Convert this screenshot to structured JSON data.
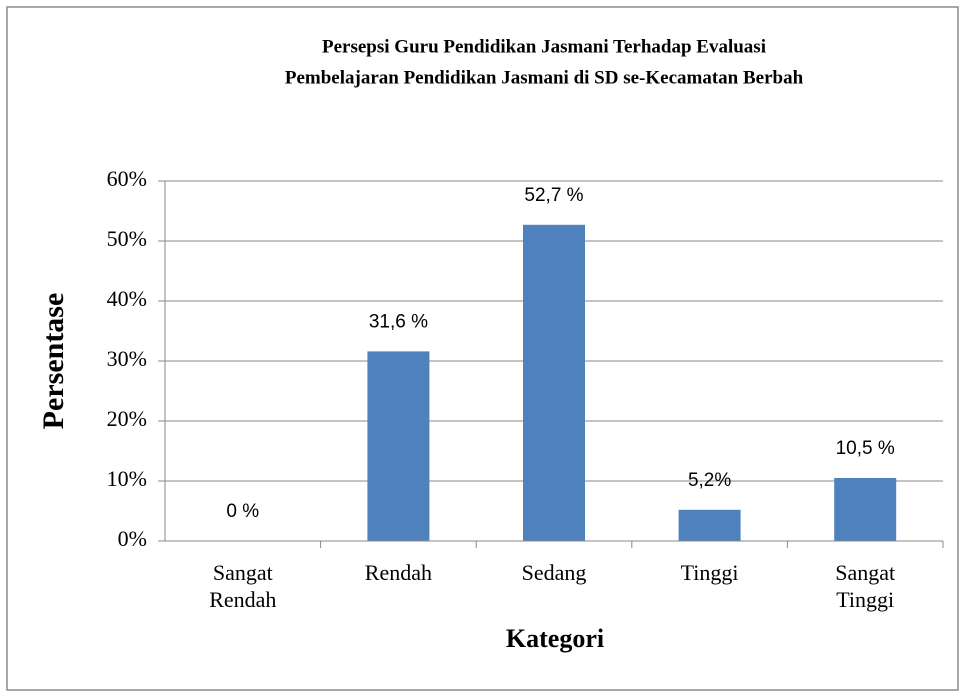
{
  "chart_data": {
    "type": "bar",
    "title": [
      "Persepsi Guru Pendidikan Jasmani Terhadap Evaluasi",
      "Pembelajaran Pendidikan Jasmani di SD se-Kecamatan Berbah"
    ],
    "y_label": "Persentase",
    "x_label": "Kategori",
    "categories": [
      "Sangat Rendah",
      "Rendah",
      "Sedang",
      "Tinggi",
      "Sangat Tinggi"
    ],
    "values": [
      0,
      31.6,
      52.7,
      5.2,
      10.5
    ],
    "value_labels": [
      "0 %",
      "31,6  %",
      "52,7 %",
      "5,2%",
      "10,5 %"
    ],
    "color": "#4f81bd",
    "ylim": [
      0,
      60
    ],
    "yticks": [
      {
        "value": 0,
        "label": "0%"
      },
      {
        "value": 10,
        "label": "10%"
      },
      {
        "value": 20,
        "label": "20%"
      },
      {
        "value": 30,
        "label": "30%"
      },
      {
        "value": 40,
        "label": "40%"
      },
      {
        "value": 50,
        "label": "50%"
      },
      {
        "value": 60,
        "label": "60%"
      }
    ],
    "grid": true
  }
}
